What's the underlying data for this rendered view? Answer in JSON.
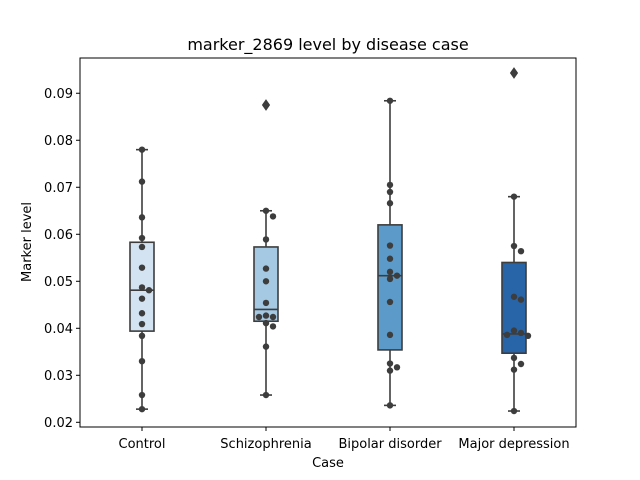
{
  "chart_data": {
    "type": "box",
    "title": "marker_2869 level by disease case",
    "xlabel": "Case",
    "ylabel": "Marker level",
    "ylim": [
      0.019,
      0.0975
    ],
    "yticks": [
      "0.02",
      "0.03",
      "0.04",
      "0.05",
      "0.06",
      "0.07",
      "0.08",
      "0.09"
    ],
    "grid": false,
    "categories": [
      "Control",
      "Schizophrenia",
      "Bipolar disorder",
      "Major depression"
    ],
    "colors": [
      "#d3e3f2",
      "#a5c9e2",
      "#5c9bc9",
      "#2765a8"
    ],
    "boxes": [
      {
        "whisker_low": 0.0228,
        "q1": 0.0394,
        "median": 0.0481,
        "q3": 0.0583,
        "whisker_high": 0.078,
        "outliers": []
      },
      {
        "whisker_low": 0.0258,
        "q1": 0.0415,
        "median": 0.044,
        "q3": 0.0573,
        "whisker_high": 0.065,
        "outliers": [
          0.0875
        ]
      },
      {
        "whisker_low": 0.0236,
        "q1": 0.0354,
        "median": 0.0512,
        "q3": 0.062,
        "whisker_high": 0.0884,
        "outliers": []
      },
      {
        "whisker_low": 0.0224,
        "q1": 0.0347,
        "median": 0.0388,
        "q3": 0.054,
        "whisker_high": 0.068,
        "outliers": [
          0.0943
        ]
      }
    ],
    "points": [
      [
        0.078,
        0.0712,
        0.0636,
        0.0592,
        0.0573,
        0.0529,
        0.0487,
        0.0481,
        0.0463,
        0.0432,
        0.0409,
        0.0384,
        0.033,
        0.0258,
        0.0228
      ],
      [
        0.0875,
        0.065,
        0.0638,
        0.0589,
        0.0527,
        0.05,
        0.0454,
        0.0427,
        0.0424,
        0.0424,
        0.0411,
        0.0404,
        0.0361,
        0.0258
      ],
      [
        0.0884,
        0.0705,
        0.069,
        0.0666,
        0.0576,
        0.0548,
        0.052,
        0.0512,
        0.0505,
        0.0456,
        0.0386,
        0.0325,
        0.0317,
        0.031,
        0.0236
      ],
      [
        0.0943,
        0.068,
        0.0575,
        0.0564,
        0.0467,
        0.0461,
        0.0395,
        0.039,
        0.0386,
        0.0384,
        0.0337,
        0.0324,
        0.0312,
        0.0224
      ]
    ]
  }
}
